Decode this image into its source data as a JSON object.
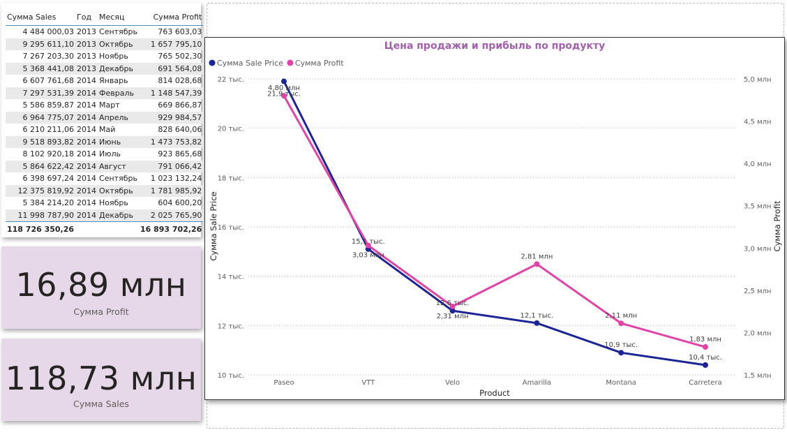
{
  "table": {
    "headers": [
      "Сумма Sales",
      "Год",
      "Месяц",
      "Сумма Profit"
    ],
    "rows": [
      [
        "4 484 000,03",
        "2013",
        "Сентябрь",
        "763 603,03"
      ],
      [
        "9 295 611,10",
        "2013",
        "Октябрь",
        "1 657 795,10"
      ],
      [
        "7 267 203,30",
        "2013",
        "Ноябрь",
        "765 502,30"
      ],
      [
        "5 368 441,08",
        "2013",
        "Декабрь",
        "691 564,08"
      ],
      [
        "6 607 761,68",
        "2014",
        "Январь",
        "814 028,68"
      ],
      [
        "7 297 531,39",
        "2014",
        "Февраль",
        "1 148 547,39"
      ],
      [
        "5 586 859,87",
        "2014",
        "Март",
        "669 866,87"
      ],
      [
        "6 964 775,07",
        "2014",
        "Апрель",
        "929 984,57"
      ],
      [
        "6 210 211,06",
        "2014",
        "Май",
        "828 640,06"
      ],
      [
        "9 518 893,82",
        "2014",
        "Июнь",
        "1 473 753,82"
      ],
      [
        "8 102 920,18",
        "2014",
        "Июль",
        "923 865,68"
      ],
      [
        "5 864 622,42",
        "2014",
        "Август",
        "791 066,42"
      ],
      [
        "6 398 697,24",
        "2014",
        "Сентябрь",
        "1 023 132,24"
      ],
      [
        "12 375 819,92",
        "2014",
        "Октябрь",
        "1 781 985,92"
      ],
      [
        "5 384 214,20",
        "2014",
        "Ноябрь",
        "604 600,20"
      ],
      [
        "11 998 787,90",
        "2014",
        "Декабрь",
        "2 025 765,90"
      ]
    ],
    "total": [
      "118 726 350,26",
      "",
      "",
      "16 893 702,26"
    ]
  },
  "cards": {
    "profit": {
      "value": "16,89 млн",
      "label": "Сумма Profit"
    },
    "sales": {
      "value": "118,73 млн",
      "label": "Сумма  Sales"
    }
  },
  "chart_data": {
    "type": "line",
    "title": "Цена продажи и прибыль по продукту",
    "xlabel": "Product",
    "ylabel_left": "Сумма Sale Price",
    "ylabel_right": "Сумма Profit",
    "categories": [
      "Paseo",
      "VTT",
      "Velo",
      "Amarilla",
      "Montana",
      "Carretera"
    ],
    "left_axis": {
      "min": 10,
      "max": 22,
      "ticks": [
        10,
        12,
        14,
        16,
        18,
        20,
        22
      ],
      "tick_labels": [
        "10 тыс.",
        "12 тыс.",
        "14 тыс.",
        "16 тыс.",
        "18 тыс.",
        "20 тыс.",
        "22 тыс."
      ]
    },
    "right_axis": {
      "min": 1.5,
      "max": 5.0,
      "ticks": [
        1.5,
        2.0,
        2.5,
        3.0,
        3.5,
        4.0,
        4.5,
        5.0
      ],
      "tick_labels": [
        "1,5 млн",
        "2,0 млн",
        "2,5 млн",
        "3,0 млн",
        "3,5 млн",
        "4,0 млн",
        "4,5 млн",
        "5,0 млн"
      ]
    },
    "legend_position": "top-left",
    "grid": true,
    "series": [
      {
        "name": "Сумма Sale Price",
        "axis": "left",
        "color": "#1c2596",
        "values": [
          21.9,
          15.1,
          12.6,
          12.1,
          10.9,
          10.4
        ],
        "labels": [
          "21,9 тыс.",
          "15,1 тыс.",
          "12,6 тыс.",
          "12,1 тыс.",
          "10,9 тыс.",
          "10,4 тыс."
        ]
      },
      {
        "name": "Сумма Profit",
        "axis": "right",
        "color": "#e044a7",
        "values": [
          4.8,
          3.03,
          2.31,
          2.81,
          2.11,
          1.83
        ],
        "labels": [
          "4,80 млн",
          "3,03 млн",
          "2,31 млн",
          "2,81 млн",
          "2,11 млн",
          "1,83 млн"
        ]
      }
    ]
  }
}
